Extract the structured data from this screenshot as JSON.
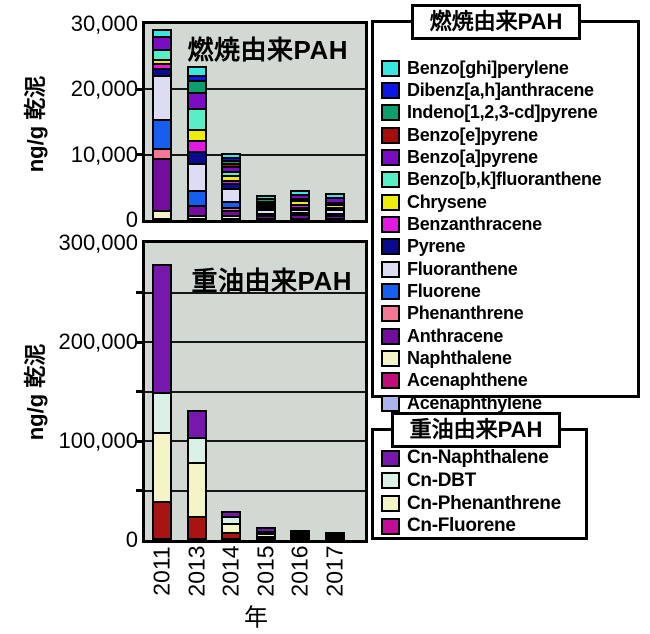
{
  "xaxis": {
    "label": "年",
    "categories": [
      "2011",
      "2013",
      "2014",
      "2015",
      "2016",
      "2017"
    ]
  },
  "colors": {
    "plot_bg": "#d2d9d3",
    "grid": "#161616",
    "frame": "#000000"
  },
  "chart_data": [
    {
      "type": "bar",
      "stacked": true,
      "id": "combustion",
      "title": "燃焼由来PAH",
      "ylabel": "ng/g 乾泥",
      "ylim": [
        0,
        30000
      ],
      "grid_step": 10000,
      "grid": true,
      "yticks": [
        {
          "value": 0,
          "label": "0"
        },
        {
          "value": 10000,
          "label": "10,000"
        },
        {
          "value": 20000,
          "label": "20,000"
        },
        {
          "value": 30000,
          "label": "30,000"
        }
      ],
      "categories": [
        "2011",
        "2013",
        "2014",
        "2015",
        "2016",
        "2017"
      ],
      "series": [
        {
          "name": "Acenaphthylene",
          "color": "#abb3ec",
          "values": [
            0,
            0,
            0,
            0,
            0,
            0
          ]
        },
        {
          "name": "Acenaphthene",
          "color": "#c00d7a",
          "values": [
            0,
            0,
            0,
            0,
            0,
            0
          ]
        },
        {
          "name": "Naphthalene",
          "color": "#f4f4c6",
          "values": [
            1300,
            500,
            500,
            0,
            0,
            0
          ]
        },
        {
          "name": "Anthracene",
          "color": "#730d9e",
          "values": [
            7900,
            1500,
            800,
            500,
            600,
            500
          ]
        },
        {
          "name": "Phenanthrene",
          "color": "#f47795",
          "values": [
            1500,
            0,
            400,
            0,
            0,
            0
          ]
        },
        {
          "name": "Fluorene",
          "color": "#155ef0",
          "values": [
            4500,
            2300,
            900,
            300,
            300,
            300
          ]
        },
        {
          "name": "Fluoranthene",
          "color": "#dcdcf2",
          "values": [
            6700,
            4100,
            2000,
            600,
            400,
            500
          ]
        },
        {
          "name": "Pyrene",
          "color": "#0a0a90",
          "values": [
            1000,
            1800,
            700,
            300,
            400,
            300
          ]
        },
        {
          "name": "Benzanthracene",
          "color": "#e318e3",
          "values": [
            800,
            1700,
            500,
            0,
            400,
            0
          ]
        },
        {
          "name": "Chrysene",
          "color": "#eded0a",
          "values": [
            700,
            1800,
            800,
            250,
            600,
            500
          ]
        },
        {
          "name": "Benzo[b,k]fluoranthene",
          "color": "#58eec6",
          "values": [
            1500,
            3100,
            600,
            300,
            300,
            300
          ]
        },
        {
          "name": "Benzo[a]pyrene",
          "color": "#7a0dc4",
          "values": [
            2000,
            2500,
            800,
            350,
            700,
            800
          ]
        },
        {
          "name": "Benzo[e]pyrene",
          "color": "#a50d0d",
          "values": [
            0,
            0,
            400,
            0,
            0,
            0
          ]
        },
        {
          "name": "Indeno[1,2,3-cd]pyrene",
          "color": "#0d9e6e",
          "values": [
            0,
            1900,
            500,
            400,
            0,
            0
          ]
        },
        {
          "name": "Dibenz[a,h]anthracene",
          "color": "#0b16e8",
          "values": [
            0,
            700,
            400,
            0,
            0,
            0
          ]
        },
        {
          "name": "Benzo[ghi]perylene",
          "color": "#38e8e0",
          "values": [
            700,
            1100,
            400,
            200,
            300,
            300
          ]
        }
      ]
    },
    {
      "type": "bar",
      "stacked": true,
      "id": "oil",
      "title": "重油由来PAH",
      "ylabel": "ng/g 乾泥",
      "ylim": [
        0,
        300000
      ],
      "grid_step": 50000,
      "grid": true,
      "yticks": [
        {
          "value": 0,
          "label": "0"
        },
        {
          "value": 100000,
          "label": "100,000"
        },
        {
          "value": 200000,
          "label": "200,000"
        },
        {
          "value": 300000,
          "label": "300,000"
        }
      ],
      "categories": [
        "2011",
        "2013",
        "2014",
        "2015",
        "2016",
        "2017"
      ],
      "series": [
        {
          "name": "Cn-Fluorene",
          "color": "#c40d96",
          "bar_color": "#a81412",
          "values": [
            37000,
            22000,
            6000,
            2500,
            2000,
            1200
          ]
        },
        {
          "name": "Cn-Phenanthrene",
          "color": "#f4f4c6",
          "values": [
            70000,
            55000,
            9000,
            2500,
            1500,
            1100
          ]
        },
        {
          "name": "Cn-DBT",
          "color": "#d9f1e7",
          "values": [
            41000,
            25000,
            7000,
            2500,
            1500,
            1000
          ]
        },
        {
          "name": "Cn-Naphthalene",
          "color": "#7618ac",
          "values": [
            127000,
            25000,
            3000,
            1500,
            1000,
            700
          ]
        }
      ]
    }
  ],
  "legends": [
    {
      "title": "燃焼由来PAH",
      "items": [
        {
          "label": "Benzo[ghi]perylene",
          "color": "#38e8e0"
        },
        {
          "label": "Dibenz[a,h]anthracene",
          "color": "#0b16e8"
        },
        {
          "label": "Indeno[1,2,3-cd]pyrene",
          "color": "#0d9e6e"
        },
        {
          "label": "Benzo[e]pyrene",
          "color": "#a50d0d"
        },
        {
          "label": "Benzo[a]pyrene",
          "color": "#7a0dc4"
        },
        {
          "label": "Benzo[b,k]fluoranthene",
          "color": "#58eec6"
        },
        {
          "label": "Chrysene",
          "color": "#eded0a"
        },
        {
          "label": "Benzanthracene",
          "color": "#e318e3"
        },
        {
          "label": "Pyrene",
          "color": "#0a0a90"
        },
        {
          "label": "Fluoranthene",
          "color": "#dcdcf2"
        },
        {
          "label": "Fluorene",
          "color": "#155ef0"
        },
        {
          "label": "Phenanthrene",
          "color": "#f47795"
        },
        {
          "label": "Anthracene",
          "color": "#730d9e"
        },
        {
          "label": "Naphthalene",
          "color": "#f4f4c6"
        },
        {
          "label": "Acenaphthene",
          "color": "#c00d7a"
        },
        {
          "label": "Acenaphthylene",
          "color": "#abb3ec"
        }
      ]
    },
    {
      "title": "重油由来PAH",
      "items": [
        {
          "label": "Cn-Naphthalene",
          "color": "#7618ac"
        },
        {
          "label": "Cn-DBT",
          "color": "#d9f1e7"
        },
        {
          "label": "Cn-Phenanthrene",
          "color": "#f4f4c6"
        },
        {
          "label": "Cn-Fluorene",
          "color": "#c40d96"
        }
      ]
    }
  ]
}
